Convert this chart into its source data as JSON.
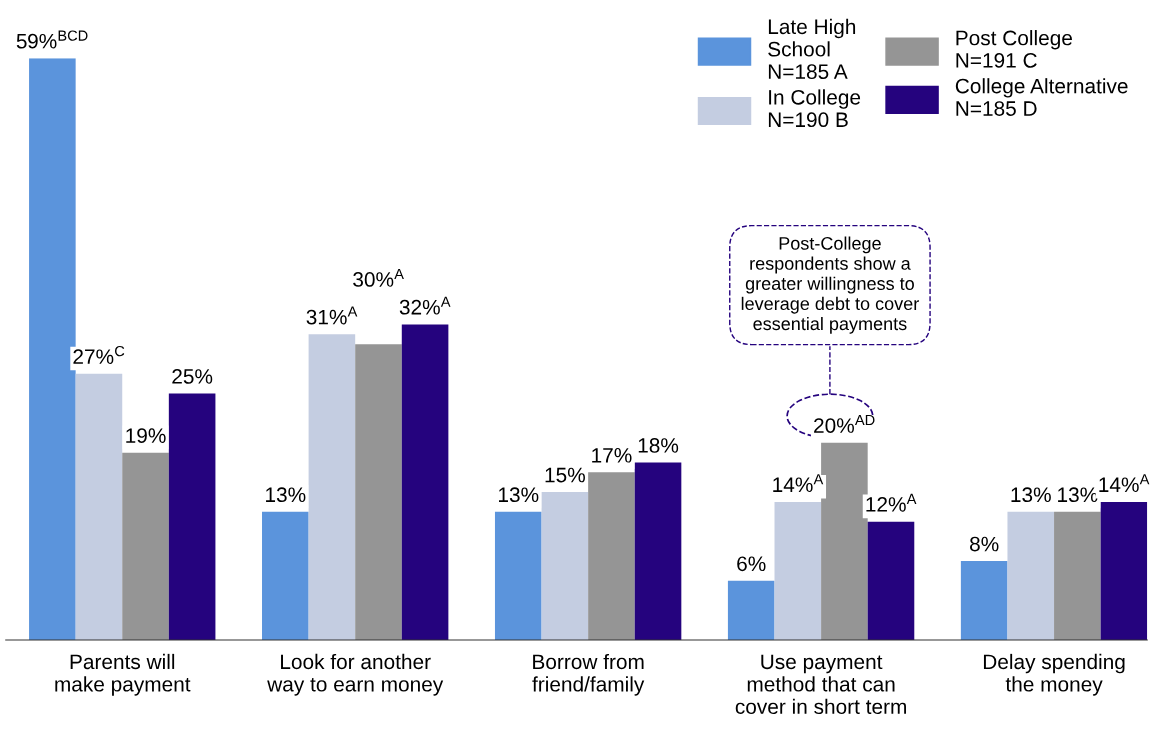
{
  "chart_data": {
    "type": "bar",
    "categories": [
      "Parents will\nmake payment",
      "Look for another\nway to earn money",
      "Borrow from\nfriend/family",
      "Use payment\nmethod that can\ncover in short term",
      "Delay spending\nthe money"
    ],
    "series": [
      {
        "name": "Late High\nSchool\nN=185 A",
        "color": "#5b94dc",
        "values": [
          59,
          13,
          13,
          6,
          8
        ],
        "value_labels": [
          "59%$^{BCD}$",
          "13%",
          "13%",
          "6%",
          "8%"
        ]
      },
      {
        "name": "In College\nN=190 B",
        "color": "#c4cde1",
        "values": [
          27,
          31,
          15,
          14,
          13
        ],
        "value_labels": [
          "27%$^{C}$",
          "31%$^{A}$",
          "15%",
          "14%$^{A}$",
          "13%"
        ]
      },
      {
        "name": "Post College\nN=191 C",
        "color": "#959595",
        "values": [
          19,
          30,
          17,
          20,
          13
        ],
        "value_labels": [
          "19%",
          "30%$^{A}$",
          "17%",
          "20%$^{AD}$",
          "13%"
        ]
      },
      {
        "name": "College Alternative\nN=185 D",
        "color": "#25037e",
        "values": [
          25,
          32,
          18,
          12,
          14
        ],
        "value_labels": [
          "25%",
          "32%$^{A}$",
          "18%",
          "12%$^{A}$",
          "14%$^{A}$"
        ]
      }
    ],
    "annotations": [
      "Post-College\nrespondents show a\ngreater willingness to\nleverage debt to cover\nessential payments"
    ],
    "legend": "top right",
    "grid": false
  }
}
